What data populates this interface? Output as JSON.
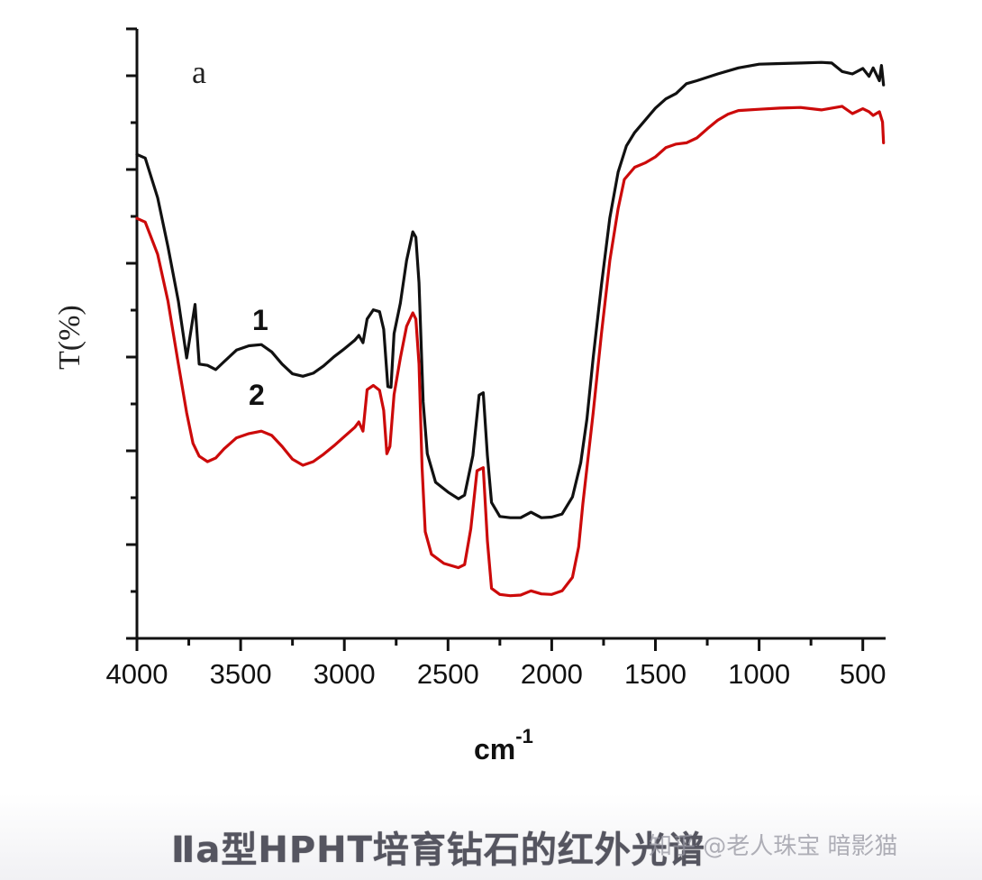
{
  "chart_data": {
    "type": "line",
    "title": "",
    "panel_label": "a",
    "xlabel": "cm",
    "xlabel_superscript": "-1",
    "ylabel": "T(%)",
    "xlim": [
      4000,
      390
    ],
    "ylim": [
      0,
      100
    ],
    "y_units": "arbitrary (no numeric tick labels)",
    "x_ticks": [
      4000,
      3500,
      3000,
      2500,
      2000,
      1500,
      1000,
      500
    ],
    "x_tick_labels": [
      "4000",
      "3500",
      "3000",
      "2500",
      "2000",
      "1500",
      "1000",
      "500"
    ],
    "grid": false,
    "legend": "inline numeric labels",
    "series": [
      {
        "name": "1",
        "color": "#111111",
        "points": [
          [
            4000,
            79.4
          ],
          [
            3960,
            78.8
          ],
          [
            3900,
            72.3
          ],
          [
            3850,
            64.2
          ],
          [
            3800,
            55.3
          ],
          [
            3760,
            46.0
          ],
          [
            3720,
            54.8
          ],
          [
            3700,
            45.0
          ],
          [
            3660,
            44.8
          ],
          [
            3620,
            44.1
          ],
          [
            3580,
            45.4
          ],
          [
            3520,
            47.3
          ],
          [
            3460,
            48.0
          ],
          [
            3400,
            48.2
          ],
          [
            3350,
            47.0
          ],
          [
            3300,
            45.0
          ],
          [
            3250,
            43.4
          ],
          [
            3200,
            43.0
          ],
          [
            3150,
            43.5
          ],
          [
            3100,
            44.7
          ],
          [
            3050,
            46.2
          ],
          [
            3000,
            47.5
          ],
          [
            2950,
            48.9
          ],
          [
            2930,
            49.7
          ],
          [
            2910,
            48.5
          ],
          [
            2890,
            52.4
          ],
          [
            2860,
            53.9
          ],
          [
            2830,
            53.6
          ],
          [
            2810,
            50.7
          ],
          [
            2790,
            41.3
          ],
          [
            2775,
            41.2
          ],
          [
            2760,
            50.0
          ],
          [
            2730,
            55.0
          ],
          [
            2700,
            62.0
          ],
          [
            2670,
            66.7
          ],
          [
            2655,
            65.8
          ],
          [
            2640,
            58.3
          ],
          [
            2620,
            38.8
          ],
          [
            2600,
            30.3
          ],
          [
            2560,
            25.6
          ],
          [
            2500,
            24.0
          ],
          [
            2450,
            22.9
          ],
          [
            2420,
            23.5
          ],
          [
            2380,
            30.0
          ],
          [
            2350,
            39.9
          ],
          [
            2330,
            40.3
          ],
          [
            2310,
            30.0
          ],
          [
            2290,
            22.3
          ],
          [
            2250,
            20.0
          ],
          [
            2200,
            19.8
          ],
          [
            2150,
            19.8
          ],
          [
            2100,
            20.7
          ],
          [
            2050,
            19.8
          ],
          [
            2000,
            19.9
          ],
          [
            1950,
            20.4
          ],
          [
            1900,
            23.2
          ],
          [
            1860,
            28.8
          ],
          [
            1830,
            36.0
          ],
          [
            1800,
            46.0
          ],
          [
            1760,
            58.0
          ],
          [
            1720,
            69.0
          ],
          [
            1680,
            76.5
          ],
          [
            1640,
            80.8
          ],
          [
            1600,
            83.0
          ],
          [
            1550,
            85.0
          ],
          [
            1500,
            87.0
          ],
          [
            1450,
            88.5
          ],
          [
            1400,
            89.4
          ],
          [
            1350,
            91.0
          ],
          [
            1300,
            91.5
          ],
          [
            1200,
            92.6
          ],
          [
            1100,
            93.6
          ],
          [
            1000,
            94.2
          ],
          [
            900,
            94.3
          ],
          [
            800,
            94.4
          ],
          [
            700,
            94.5
          ],
          [
            650,
            94.4
          ],
          [
            600,
            93.0
          ],
          [
            550,
            92.6
          ],
          [
            500,
            93.5
          ],
          [
            470,
            92.2
          ],
          [
            450,
            93.6
          ],
          [
            420,
            91.5
          ],
          [
            410,
            94.0
          ],
          [
            400,
            90.8
          ]
        ]
      },
      {
        "name": "2",
        "color": "#cc0a0a",
        "points": [
          [
            4000,
            68.9
          ],
          [
            3960,
            68.3
          ],
          [
            3900,
            63.0
          ],
          [
            3850,
            55.3
          ],
          [
            3800,
            45.0
          ],
          [
            3760,
            37.0
          ],
          [
            3730,
            32.0
          ],
          [
            3700,
            29.9
          ],
          [
            3660,
            29.0
          ],
          [
            3620,
            29.6
          ],
          [
            3580,
            31.1
          ],
          [
            3520,
            32.9
          ],
          [
            3460,
            33.6
          ],
          [
            3400,
            34.0
          ],
          [
            3350,
            33.3
          ],
          [
            3300,
            31.5
          ],
          [
            3250,
            29.4
          ],
          [
            3200,
            28.4
          ],
          [
            3150,
            29.0
          ],
          [
            3100,
            30.2
          ],
          [
            3050,
            31.6
          ],
          [
            3000,
            33.1
          ],
          [
            2950,
            34.6
          ],
          [
            2930,
            35.5
          ],
          [
            2910,
            34.0
          ],
          [
            2890,
            40.8
          ],
          [
            2860,
            41.5
          ],
          [
            2830,
            40.7
          ],
          [
            2810,
            37.4
          ],
          [
            2795,
            30.3
          ],
          [
            2780,
            31.5
          ],
          [
            2760,
            40.0
          ],
          [
            2730,
            46.0
          ],
          [
            2700,
            51.2
          ],
          [
            2670,
            53.4
          ],
          [
            2655,
            52.4
          ],
          [
            2640,
            45.0
          ],
          [
            2625,
            28.0
          ],
          [
            2610,
            17.5
          ],
          [
            2580,
            13.8
          ],
          [
            2520,
            12.3
          ],
          [
            2450,
            11.6
          ],
          [
            2420,
            12.1
          ],
          [
            2390,
            18.0
          ],
          [
            2360,
            27.5
          ],
          [
            2330,
            28.0
          ],
          [
            2310,
            16.0
          ],
          [
            2290,
            8.2
          ],
          [
            2250,
            7.2
          ],
          [
            2200,
            7.0
          ],
          [
            2150,
            7.1
          ],
          [
            2100,
            7.8
          ],
          [
            2050,
            7.3
          ],
          [
            2000,
            7.2
          ],
          [
            1950,
            7.8
          ],
          [
            1900,
            10.0
          ],
          [
            1870,
            15.0
          ],
          [
            1850,
            22.0
          ],
          [
            1830,
            28.0
          ],
          [
            1800,
            37.0
          ],
          [
            1760,
            50.0
          ],
          [
            1720,
            62.0
          ],
          [
            1680,
            70.5
          ],
          [
            1650,
            75.3
          ],
          [
            1600,
            77.3
          ],
          [
            1550,
            78.0
          ],
          [
            1500,
            79.0
          ],
          [
            1450,
            80.5
          ],
          [
            1400,
            81.1
          ],
          [
            1350,
            81.3
          ],
          [
            1300,
            82.1
          ],
          [
            1250,
            83.6
          ],
          [
            1200,
            85.0
          ],
          [
            1150,
            86.0
          ],
          [
            1100,
            86.6
          ],
          [
            1000,
            86.8
          ],
          [
            900,
            87.0
          ],
          [
            800,
            87.1
          ],
          [
            700,
            86.7
          ],
          [
            600,
            87.3
          ],
          [
            550,
            86.1
          ],
          [
            500,
            86.9
          ],
          [
            470,
            86.4
          ],
          [
            450,
            85.8
          ],
          [
            420,
            86.4
          ],
          [
            405,
            84.7
          ],
          [
            400,
            81.3
          ]
        ]
      }
    ],
    "annotations": [
      {
        "text": "1",
        "near_x": 3400,
        "series": "1"
      },
      {
        "text": "2",
        "near_x": 3400,
        "series": "2"
      },
      {
        "text": "a",
        "position": "top-left"
      }
    ]
  },
  "caption": {
    "text": "Ⅱa型HPHT培育钻石的红外光谱"
  },
  "watermark": {
    "text": "知乎 @老人珠宝 暗影猫"
  }
}
